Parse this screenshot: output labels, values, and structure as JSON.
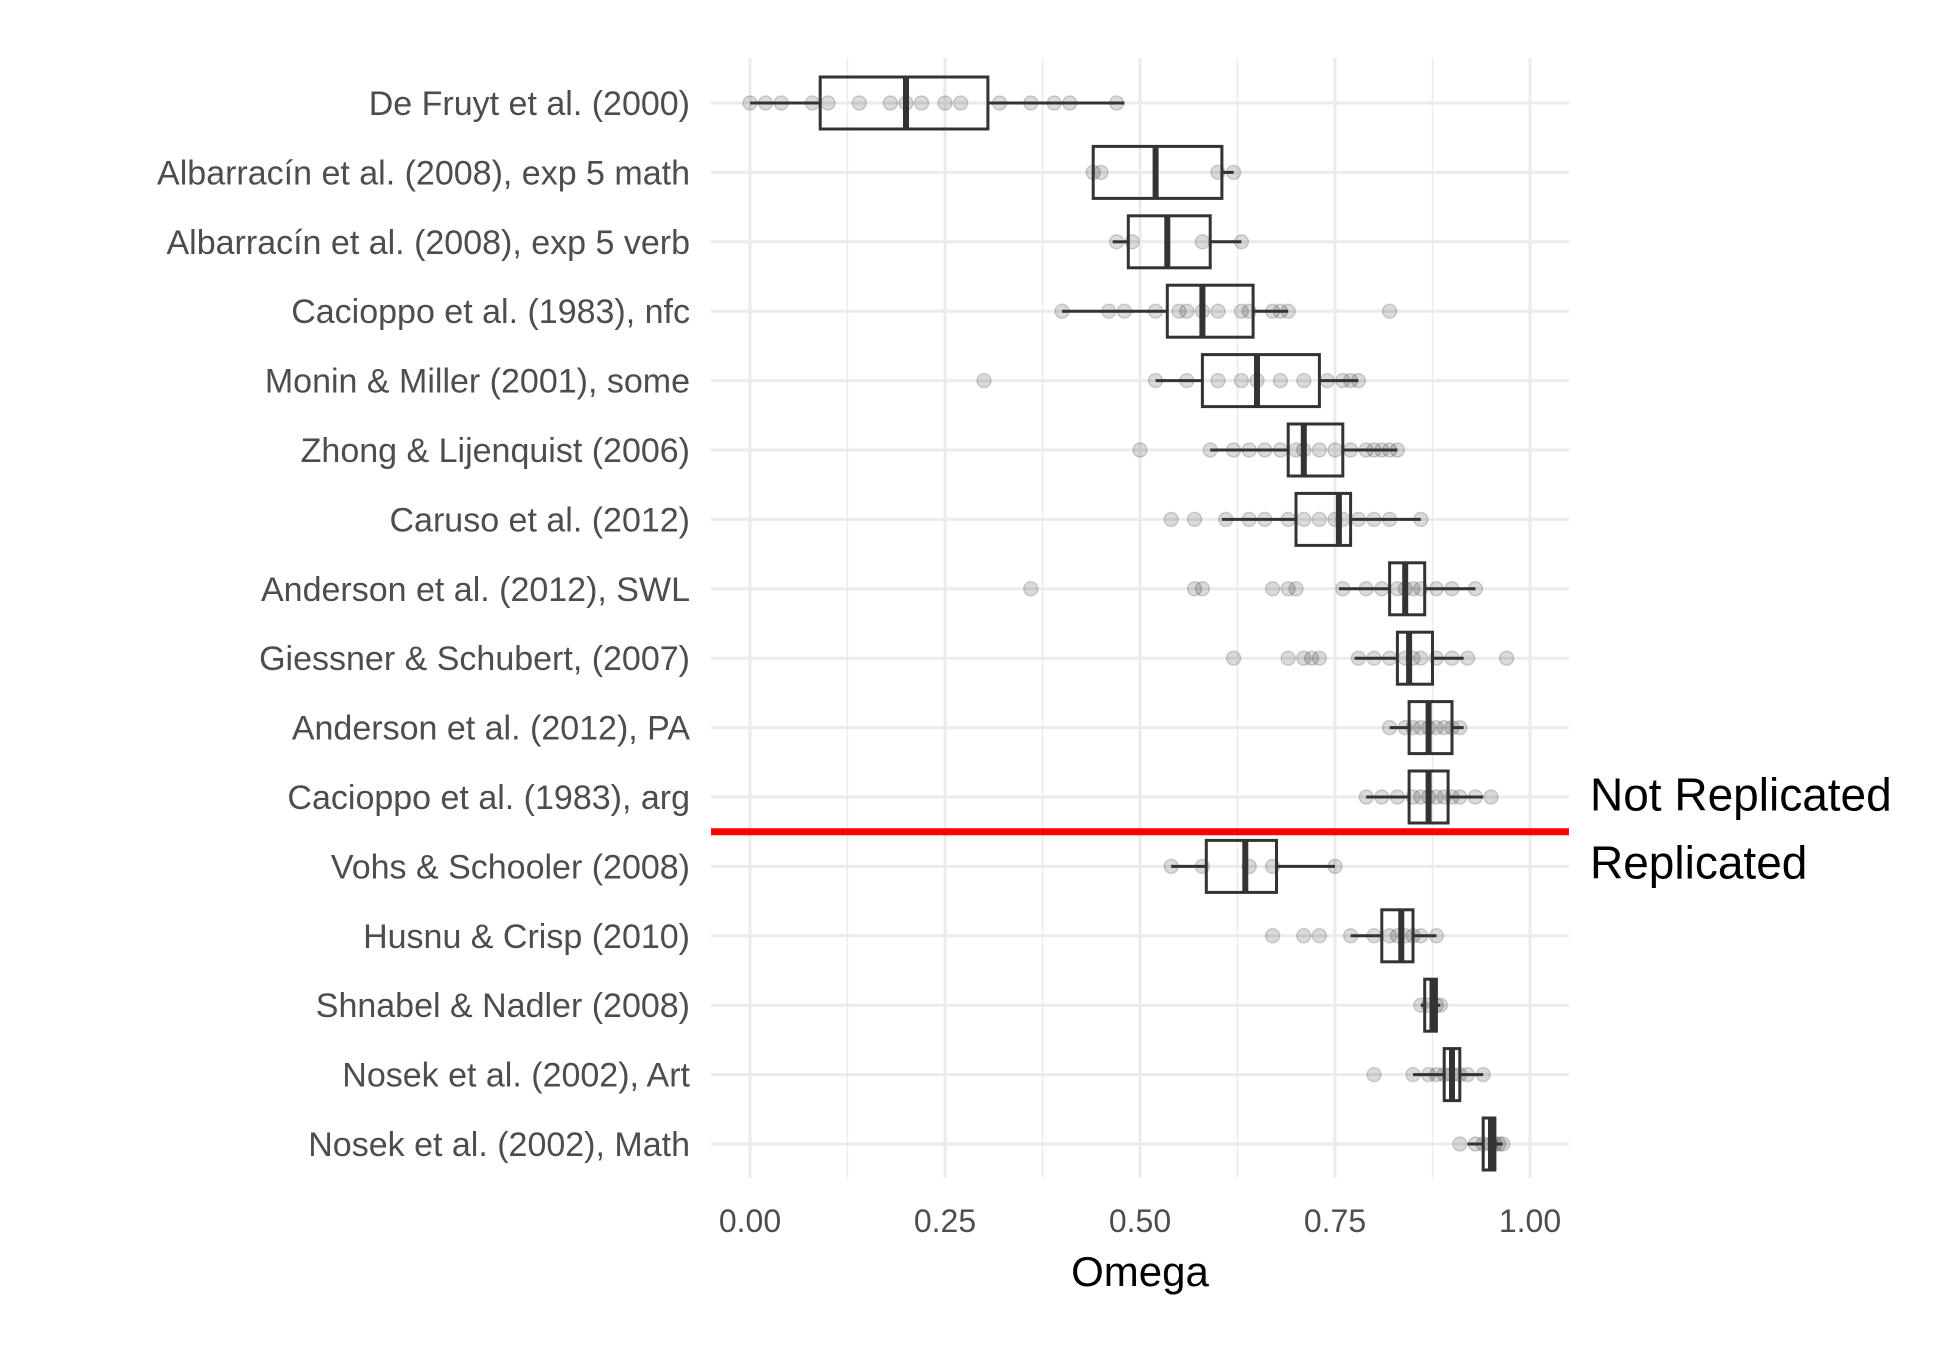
{
  "chart_data": {
    "type": "boxplot",
    "xlabel": "Omega",
    "xlim": [
      -0.05,
      1.05
    ],
    "x_ticks": [
      0,
      0.25,
      0.5,
      0.75,
      1
    ],
    "x_tick_labels": [
      "0.00",
      "0.25",
      "0.50",
      "0.75",
      "1.00"
    ],
    "grid": true,
    "divider_value_between": [
      "Cacioppo et al. (1983), arg",
      "Vohs & Schooler (2008)"
    ],
    "divider_color": "#ff0000",
    "annotations": [
      "Not Replicated",
      "Replicated"
    ],
    "categories": [
      {
        "name": "De Fruyt et al. (2000)",
        "whisker_low": 0.0,
        "q1": 0.09,
        "median": 0.2,
        "q3": 0.305,
        "whisker_high": 0.48,
        "points": [
          0.0,
          0.02,
          0.04,
          0.08,
          0.1,
          0.14,
          0.18,
          0.2,
          0.22,
          0.25,
          0.27,
          0.32,
          0.36,
          0.39,
          0.41,
          0.47
        ]
      },
      {
        "name": "Albarracín et al. (2008), exp 5 math",
        "whisker_low": 0.44,
        "q1": 0.44,
        "median": 0.52,
        "q3": 0.605,
        "whisker_high": 0.62,
        "points": [
          0.44,
          0.45,
          0.6,
          0.62
        ]
      },
      {
        "name": "Albarracín et al. (2008), exp 5 verb",
        "whisker_low": 0.465,
        "q1": 0.485,
        "median": 0.535,
        "q3": 0.59,
        "whisker_high": 0.63,
        "points": [
          0.47,
          0.49,
          0.58,
          0.63
        ]
      },
      {
        "name": "Cacioppo et al. (1983), nfc",
        "whisker_low": 0.4,
        "q1": 0.535,
        "median": 0.58,
        "q3": 0.645,
        "whisker_high": 0.69,
        "points": [
          0.4,
          0.46,
          0.48,
          0.52,
          0.55,
          0.56,
          0.58,
          0.6,
          0.63,
          0.64,
          0.67,
          0.68,
          0.69,
          0.82
        ]
      },
      {
        "name": "Monin & Miller (2001), some",
        "whisker_low": 0.52,
        "q1": 0.58,
        "median": 0.65,
        "q3": 0.73,
        "whisker_high": 0.78,
        "points": [
          0.3,
          0.52,
          0.56,
          0.6,
          0.63,
          0.65,
          0.68,
          0.71,
          0.74,
          0.76,
          0.77,
          0.78
        ]
      },
      {
        "name": "Zhong & Lijenquist (2006)",
        "whisker_low": 0.59,
        "q1": 0.69,
        "median": 0.71,
        "q3": 0.76,
        "whisker_high": 0.83,
        "points": [
          0.5,
          0.59,
          0.62,
          0.64,
          0.66,
          0.68,
          0.7,
          0.71,
          0.73,
          0.75,
          0.77,
          0.79,
          0.8,
          0.81,
          0.82,
          0.83
        ]
      },
      {
        "name": "Caruso et al. (2012)",
        "whisker_low": 0.605,
        "q1": 0.7,
        "median": 0.755,
        "q3": 0.77,
        "whisker_high": 0.86,
        "points": [
          0.54,
          0.57,
          0.61,
          0.64,
          0.66,
          0.69,
          0.71,
          0.73,
          0.75,
          0.76,
          0.78,
          0.8,
          0.82,
          0.86
        ]
      },
      {
        "name": "Anderson et al. (2012), SWL",
        "whisker_low": 0.755,
        "q1": 0.82,
        "median": 0.84,
        "q3": 0.865,
        "whisker_high": 0.93,
        "points": [
          0.36,
          0.57,
          0.58,
          0.67,
          0.69,
          0.7,
          0.76,
          0.79,
          0.81,
          0.83,
          0.84,
          0.85,
          0.86,
          0.88,
          0.9,
          0.93
        ]
      },
      {
        "name": "Giessner & Schubert, (2007)",
        "whisker_low": 0.775,
        "q1": 0.83,
        "median": 0.845,
        "q3": 0.875,
        "whisker_high": 0.915,
        "points": [
          0.62,
          0.69,
          0.71,
          0.72,
          0.73,
          0.78,
          0.8,
          0.82,
          0.84,
          0.85,
          0.86,
          0.88,
          0.9,
          0.92,
          0.97
        ]
      },
      {
        "name": "Anderson et al. (2012), PA",
        "whisker_low": 0.82,
        "q1": 0.845,
        "median": 0.87,
        "q3": 0.9,
        "whisker_high": 0.915,
        "points": [
          0.82,
          0.84,
          0.85,
          0.86,
          0.87,
          0.88,
          0.89,
          0.9,
          0.91
        ]
      },
      {
        "name": "Cacioppo et al. (1983), arg",
        "whisker_low": 0.79,
        "q1": 0.845,
        "median": 0.87,
        "q3": 0.895,
        "whisker_high": 0.94,
        "points": [
          0.79,
          0.81,
          0.83,
          0.85,
          0.86,
          0.87,
          0.88,
          0.89,
          0.9,
          0.91,
          0.93,
          0.95
        ]
      },
      {
        "name": "Vohs & Schooler (2008)",
        "whisker_low": 0.54,
        "q1": 0.585,
        "median": 0.635,
        "q3": 0.675,
        "whisker_high": 0.75,
        "points": [
          0.54,
          0.58,
          0.64,
          0.67,
          0.75
        ]
      },
      {
        "name": "Husnu & Crisp (2010)",
        "whisker_low": 0.77,
        "q1": 0.81,
        "median": 0.835,
        "q3": 0.85,
        "whisker_high": 0.88,
        "points": [
          0.67,
          0.71,
          0.73,
          0.77,
          0.8,
          0.82,
          0.83,
          0.84,
          0.85,
          0.86,
          0.88
        ]
      },
      {
        "name": "Shnabel & Nadler (2008)",
        "whisker_low": 0.86,
        "q1": 0.865,
        "median": 0.875,
        "q3": 0.88,
        "whisker_high": 0.885,
        "points": [
          0.86,
          0.87,
          0.88,
          0.885
        ]
      },
      {
        "name": "Nosek et al. (2002), Art",
        "whisker_low": 0.85,
        "q1": 0.89,
        "median": 0.9,
        "q3": 0.91,
        "whisker_high": 0.94,
        "points": [
          0.8,
          0.85,
          0.87,
          0.88,
          0.89,
          0.9,
          0.91,
          0.92,
          0.94
        ]
      },
      {
        "name": "Nosek et al. (2002), Math",
        "whisker_low": 0.92,
        "q1": 0.94,
        "median": 0.95,
        "q3": 0.955,
        "whisker_high": 0.965,
        "points": [
          0.91,
          0.93,
          0.94,
          0.95,
          0.955,
          0.96,
          0.965
        ]
      }
    ]
  }
}
